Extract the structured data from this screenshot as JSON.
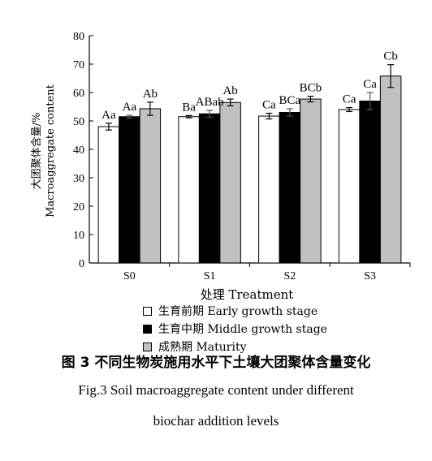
{
  "chart_data": {
    "type": "bar",
    "categories": [
      "S0",
      "S1",
      "S2",
      "S3"
    ],
    "ylim": [
      0,
      80
    ],
    "yticks": [
      0,
      10,
      20,
      30,
      40,
      50,
      60,
      70,
      80
    ],
    "ylabel_line1": "大团聚体含量/%",
    "ylabel_line2": "Macroaggregate content",
    "xlabel": "处理 Treatment",
    "series": [
      {
        "name": "生育前期 Early growth stage",
        "color": "#ffffff",
        "values": [
          48.0,
          51.5,
          51.7,
          54.0
        ],
        "errors": [
          1.2,
          0.4,
          1.0,
          0.7
        ],
        "labels": [
          "Aa",
          "Ba",
          "Ca",
          "Ca"
        ]
      },
      {
        "name": "生育中期 Middle growth stage",
        "color": "#000000",
        "values": [
          51.5,
          52.5,
          53.0,
          57.0
        ],
        "errors": [
          0.5,
          1.2,
          1.3,
          3.0
        ],
        "labels": [
          "Aa",
          "ABab",
          "BCa",
          "Ca"
        ]
      },
      {
        "name": "成熟期 Maturity",
        "color": "#c0c0c0",
        "values": [
          54.3,
          56.5,
          57.7,
          65.8
        ],
        "errors": [
          2.3,
          1.2,
          1.0,
          4.0
        ],
        "labels": [
          "Ab",
          "Ab",
          "BCb",
          "Cb"
        ]
      }
    ]
  },
  "caption": {
    "zh": "图 3   不同生物炭施用水平下土壤大团聚体含量变化",
    "en_line1": "Fig.3   Soil macroaggregate content under different",
    "en_line2": "biochar addition levels"
  }
}
